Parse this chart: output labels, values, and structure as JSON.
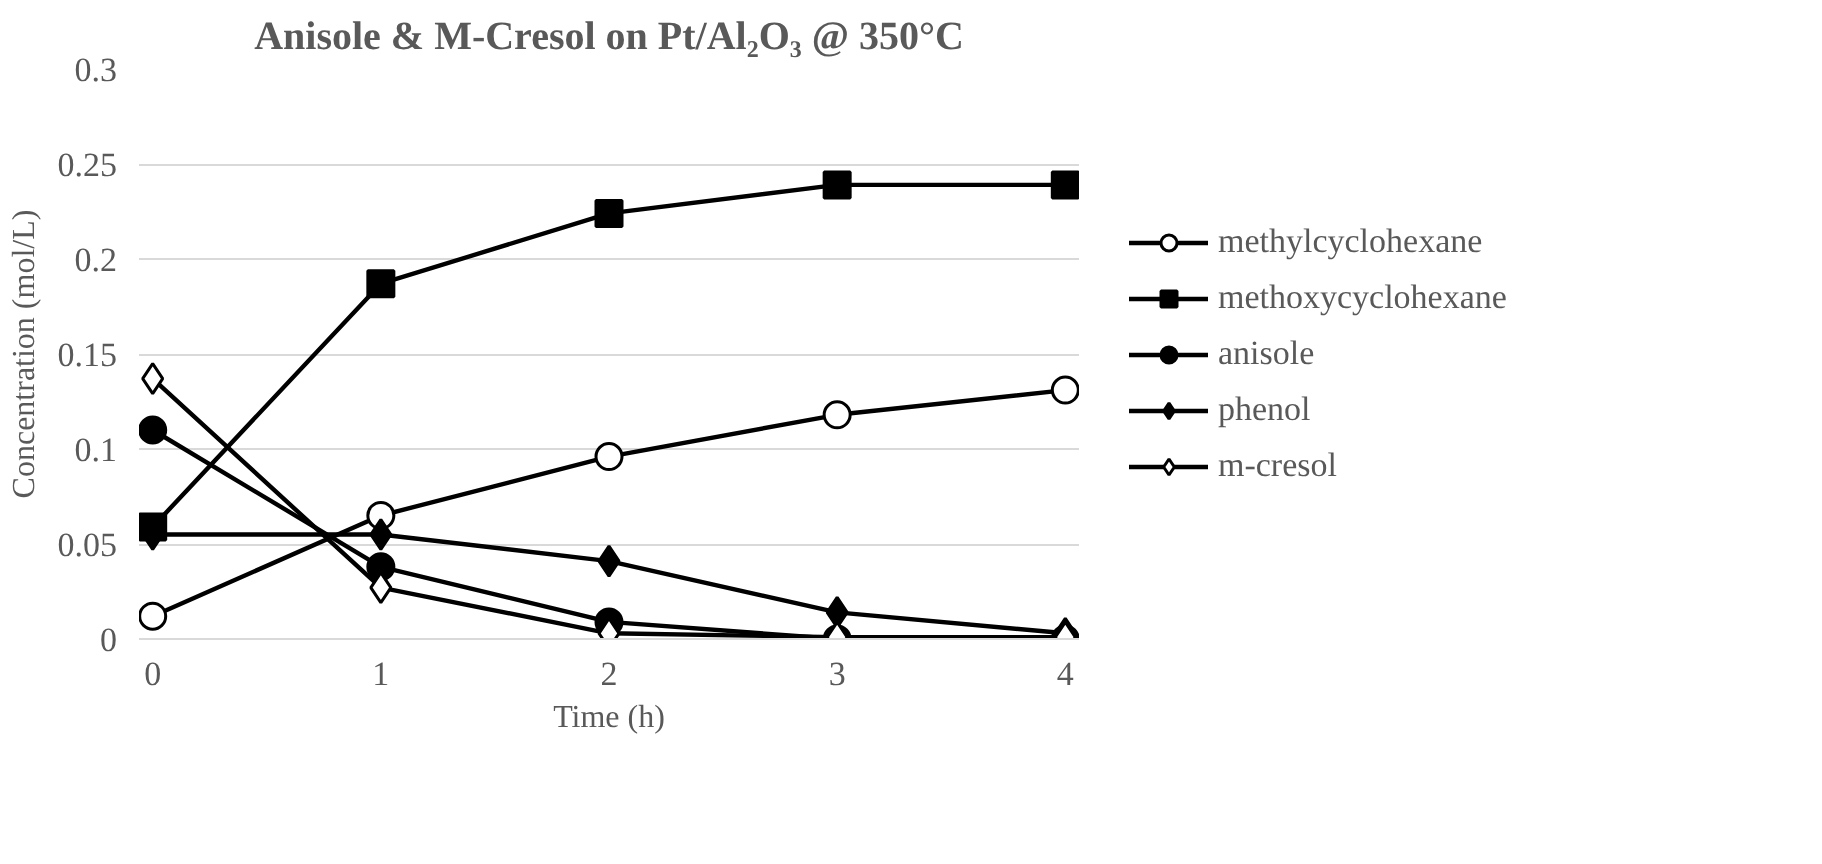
{
  "chart_data": {
    "type": "line",
    "title": "Anisole & M-Cresol on Pt/Al₂O₃ @ 350°C",
    "xlabel": "Time (h)",
    "ylabel": "Concentration (mol/L)",
    "categories": [
      "0",
      "1",
      "2",
      "3",
      "4"
    ],
    "ylim": [
      0,
      0.3
    ],
    "yticks": [
      0,
      0.05,
      0.1,
      0.15,
      0.2,
      0.25,
      0.3
    ],
    "grid": "y",
    "legend": "right",
    "line_style": "solid",
    "series": [
      {
        "name": "methylcyclohexane",
        "color": "#000000",
        "marker": "circle-open",
        "values": [
          0.012,
          0.065,
          0.096,
          0.118,
          0.131
        ]
      },
      {
        "name": "methoxycyclohexane",
        "color": "#000000",
        "marker": "square",
        "values": [
          0.059,
          0.187,
          0.224,
          0.239,
          0.239
        ]
      },
      {
        "name": "anisole",
        "color": "#000000",
        "marker": "circle",
        "values": [
          0.11,
          0.038,
          0.009,
          0.0,
          0.0
        ]
      },
      {
        "name": "phenol",
        "color": "#000000",
        "marker": "diamond",
        "values": [
          0.055,
          0.055,
          0.041,
          0.014,
          0.003
        ]
      },
      {
        "name": "m-cresol",
        "color": "#000000",
        "marker": "diamond-open",
        "values": [
          0.137,
          0.027,
          0.003,
          0.001,
          0.001
        ]
      }
    ]
  }
}
